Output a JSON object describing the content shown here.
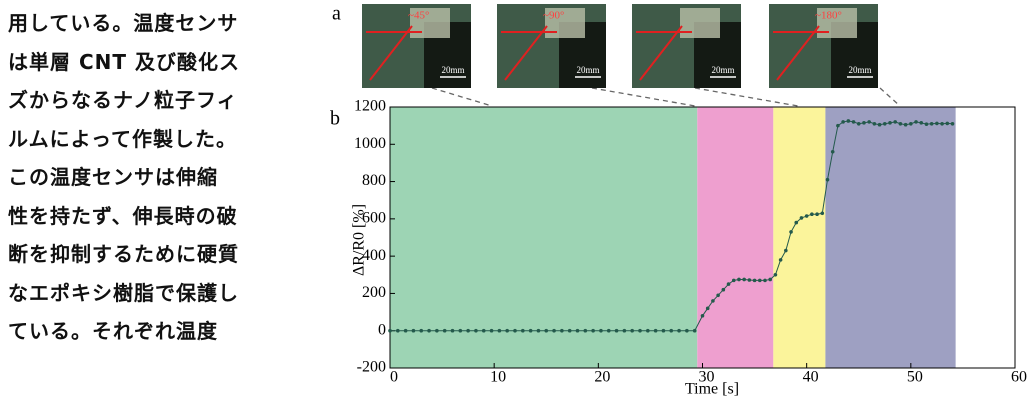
{
  "document": {
    "lines": [
      "用している。温度センサ",
      "は単層 CNT 及び酸化ス",
      "ズからなるナノ粒子フィ",
      "ルムによって作製した。",
      "この温度センサは伸縮",
      "性を持たず、伸長時の破",
      "断を抑制するために硬質",
      "なエポキシ樹脂で保護し",
      "ている。それぞれ温度"
    ]
  },
  "figure": {
    "label_a": "a",
    "label_b": "b",
    "photos": [
      {
        "angle": "~45°",
        "scale": "20mm"
      },
      {
        "angle": "~90°",
        "scale": "20mm"
      },
      {
        "scale": "20mm"
      },
      {
        "angle": "~180°",
        "scale": "20mm"
      }
    ]
  },
  "chart_data": {
    "type": "line",
    "xlabel": "Time [s]",
    "ylabel": "ΔR/R0 [%]",
    "xlim": [
      0,
      60
    ],
    "ylim": [
      -200,
      1200
    ],
    "xticks": [
      0,
      10,
      20,
      30,
      40,
      50,
      60
    ],
    "yticks": [
      -200,
      0,
      200,
      400,
      600,
      800,
      1000,
      1200
    ],
    "regions": [
      {
        "start": 0,
        "end": 29.5,
        "color": "#9dd4b4"
      },
      {
        "start": 29.5,
        "end": 36.8,
        "color": "#ee9fcf"
      },
      {
        "start": 36.8,
        "end": 41.8,
        "color": "#fbf49b"
      },
      {
        "start": 41.8,
        "end": 54.3,
        "color": "#9ea0c2"
      }
    ],
    "series": [
      {
        "color": "#245a4c",
        "x": [
          0,
          0.75,
          1.5,
          2.25,
          3,
          3.75,
          4.5,
          5.25,
          6,
          6.75,
          7.5,
          8.25,
          9,
          9.75,
          10.5,
          11.25,
          12,
          12.75,
          13.5,
          14.25,
          15,
          15.75,
          16.5,
          17.25,
          18,
          18.75,
          19.5,
          20.25,
          21,
          21.75,
          22.5,
          23.25,
          24,
          24.75,
          25.5,
          26.25,
          27,
          27.75,
          28.5,
          29.25,
          30,
          30.5,
          31,
          31.5,
          32,
          32.5,
          33,
          33.5,
          34,
          34.5,
          35,
          35.5,
          36,
          36.5,
          37,
          37.5,
          38,
          38.5,
          39,
          39.5,
          40,
          40.5,
          41,
          41.5,
          42,
          42.5,
          43,
          43.5,
          44,
          44.5,
          45,
          45.5,
          46,
          46.5,
          47,
          47.5,
          48,
          48.5,
          49,
          49.5,
          50,
          50.5,
          51,
          51.5,
          52,
          52.5,
          53,
          53.5,
          54
        ],
        "values": [
          0,
          0,
          0,
          0,
          0,
          0,
          0,
          0,
          0,
          0,
          0,
          0,
          0,
          0,
          0,
          0,
          0,
          0,
          0,
          0,
          0,
          0,
          0,
          0,
          0,
          0,
          0,
          0,
          0,
          0,
          0,
          0,
          0,
          0,
          0,
          0,
          0,
          0,
          0,
          0,
          80,
          120,
          160,
          190,
          220,
          250,
          270,
          275,
          275,
          272,
          270,
          270,
          270,
          275,
          300,
          380,
          430,
          530,
          580,
          605,
          615,
          625,
          625,
          630,
          810,
          960,
          1100,
          1120,
          1125,
          1120,
          1110,
          1115,
          1120,
          1110,
          1105,
          1110,
          1115,
          1120,
          1110,
          1105,
          1110,
          1120,
          1115,
          1108,
          1110,
          1112,
          1110,
          1112,
          1110
        ]
      }
    ]
  }
}
